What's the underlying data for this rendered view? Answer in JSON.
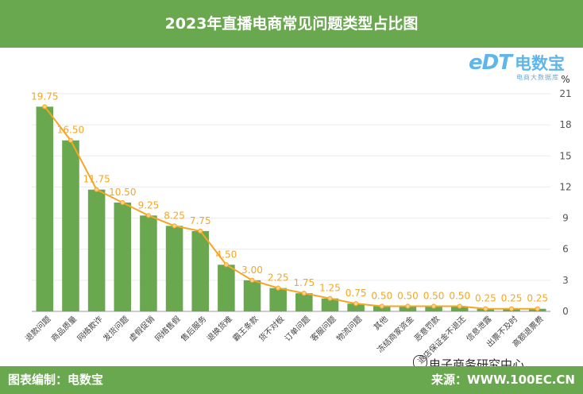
{
  "header": {
    "title": "2023年直播电商常见问题类型占比图"
  },
  "footer": {
    "left": "图表编制：电数宝",
    "right": "来源：WWW.100EC.CN"
  },
  "logo": {
    "mark": "eDT",
    "brand": "电数宝",
    "tagline": "电商大数据库"
  },
  "watermark": {
    "text": "电子商务研究中心",
    "icon": "wechat-icon"
  },
  "colors": {
    "bar": "#6aa84f",
    "line": "#f5a623",
    "header": "#6aa84f"
  },
  "chart_data": {
    "type": "bar",
    "categories": [
      "退款问题",
      "商品质量",
      "网络欺诈",
      "发货问题",
      "虚假促销",
      "网络售假",
      "售后服务",
      "退换货难",
      "霸王条款",
      "货不对板",
      "订单问题",
      "客服问题",
      "物流问题",
      "其他",
      "冻结商家资金",
      "恶意罚款",
      "退店保证金不退还",
      "信息泄露",
      "出票不及时",
      "高额退票费"
    ],
    "series": [
      {
        "type": "bar",
        "values": [
          19.75,
          16.5,
          11.75,
          10.5,
          9.25,
          8.25,
          7.75,
          4.5,
          3.0,
          2.25,
          1.75,
          1.25,
          0.75,
          0.5,
          0.5,
          0.5,
          0.5,
          0.25,
          0.25,
          0.25
        ]
      },
      {
        "type": "line",
        "values": [
          19.75,
          16.5,
          11.75,
          10.5,
          9.25,
          8.25,
          7.75,
          4.5,
          3.0,
          2.25,
          1.75,
          1.25,
          0.75,
          0.5,
          0.5,
          0.5,
          0.5,
          0.25,
          0.25,
          0.25
        ]
      }
    ],
    "data_labels": [
      "19.75",
      "16.50",
      "11.75",
      "10.50",
      "9.25",
      "8.25",
      "7.75",
      "4.50",
      "3.00",
      "2.25",
      "1.75",
      "1.25",
      "0.75",
      "0.50",
      "0.50",
      "0.50",
      "0.50",
      "0.25",
      "0.25",
      "0.25"
    ],
    "y_axis": {
      "position": "right",
      "unit": "%",
      "ticks": [
        "0",
        "3",
        "6",
        "9",
        "12",
        "15",
        "18",
        "21"
      ],
      "ylim": [
        0,
        21
      ]
    },
    "grid": true
  }
}
